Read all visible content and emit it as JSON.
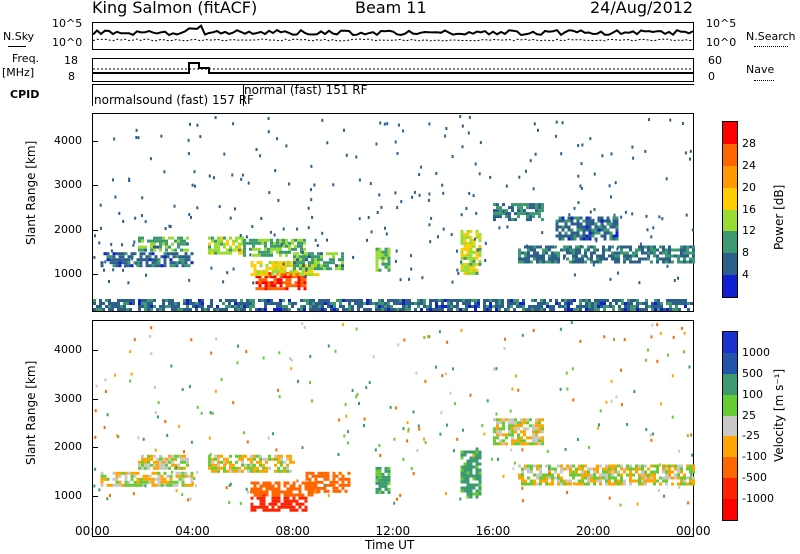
{
  "header": {
    "station": "King Salmon (fitACF)",
    "beam": "Beam 11",
    "date": "24/Aug/2012"
  },
  "status_panel": {
    "left_top_label": "N.Sky",
    "left_top_ticks": [
      "10^5",
      "10^0"
    ],
    "right_top_label": "N.Search",
    "right_top_ticks": [
      "10^5",
      "10^0"
    ],
    "left_mid_label_1": "Freq.",
    "left_mid_label_2": "[MHz]",
    "left_mid_ticks": [
      "18",
      "8"
    ],
    "right_mid_label": "Nave",
    "right_mid_ticks": [
      "60",
      "0"
    ],
    "cpid_label": "CPID",
    "cpid_mode_1": "normalsound (fast) 157 RF",
    "cpid_mode_2": "normal (fast) 151 RF"
  },
  "panels": {
    "ylabel": "Slant Range [km]",
    "y_ticks": [
      "4000",
      "3000",
      "2000",
      "1000"
    ],
    "x_ticks": [
      "00:00",
      "04:00",
      "08:00",
      "12:00",
      "16:00",
      "20:00",
      "00:00"
    ],
    "xlabel": "Time UT"
  },
  "colorbars": {
    "power": {
      "label": "Power [dB]",
      "ticks": [
        "28",
        "24",
        "20",
        "16",
        "12",
        "8",
        "4"
      ],
      "colors": [
        "#ff0000",
        "#ff6600",
        "#ff9900",
        "#ffcc00",
        "#99dd33",
        "#3d9970",
        "#2c5f8a",
        "#1020d0"
      ]
    },
    "velocity": {
      "label": "Velocity [m s⁻¹]",
      "ticks": [
        "1000",
        "500",
        "100",
        "25",
        "-25",
        "-100",
        "-500",
        "-1000"
      ],
      "colors": [
        "#1a33cc",
        "#2255aa",
        "#3d9970",
        "#66cc33",
        "#c8c8c8",
        "#ffa500",
        "#ff6600",
        "#ff2200",
        "#ff0000"
      ]
    }
  },
  "chart_data": [
    {
      "type": "heatmap",
      "title": "Power",
      "xlabel": "Time UT",
      "ylabel": "Slant Range [km]",
      "xlim_hours": [
        0,
        24
      ],
      "ylim_km": [
        180,
        4600
      ],
      "clim_db": [
        0,
        30
      ],
      "features": [
        {
          "t0": 0.0,
          "t1": 24.0,
          "r0": 200,
          "r1": 450,
          "val": 6
        },
        {
          "t0": 0.3,
          "t1": 4.0,
          "r0": 1200,
          "r1": 1500,
          "val": 6
        },
        {
          "t0": 1.8,
          "t1": 3.8,
          "r0": 1550,
          "r1": 1850,
          "val": 10
        },
        {
          "t0": 4.6,
          "t1": 6.0,
          "r0": 1500,
          "r1": 1850,
          "val": 13
        },
        {
          "t0": 6.0,
          "t1": 8.5,
          "r0": 1400,
          "r1": 1800,
          "val": 11
        },
        {
          "t0": 6.5,
          "t1": 8.5,
          "r0": 700,
          "r1": 1050,
          "val": 26
        },
        {
          "t0": 6.3,
          "t1": 9.0,
          "r0": 1000,
          "r1": 1300,
          "val": 15
        },
        {
          "t0": 8.0,
          "t1": 10.0,
          "r0": 1100,
          "r1": 1500,
          "val": 10
        },
        {
          "t0": 11.3,
          "t1": 11.9,
          "r0": 1100,
          "r1": 1600,
          "val": 11
        },
        {
          "t0": 14.7,
          "t1": 15.5,
          "r0": 1000,
          "r1": 2000,
          "val": 14
        },
        {
          "t0": 16.0,
          "t1": 18.0,
          "r0": 2200,
          "r1": 2600,
          "val": 8
        },
        {
          "t0": 17.0,
          "t1": 24.0,
          "r0": 1250,
          "r1": 1650,
          "val": 7
        },
        {
          "t0": 18.5,
          "t1": 21.0,
          "r0": 1800,
          "r1": 2300,
          "val": 6
        }
      ]
    },
    {
      "type": "heatmap",
      "title": "Velocity",
      "xlabel": "Time UT",
      "ylabel": "Slant Range [km]",
      "xlim_hours": [
        0,
        24
      ],
      "ylim_km": [
        180,
        4600
      ],
      "clim_ms": [
        -1000,
        1000
      ],
      "features": [
        {
          "t0": 0.3,
          "t1": 4.0,
          "r0": 1250,
          "r1": 1500,
          "val": 0
        },
        {
          "t0": 1.8,
          "t1": 3.8,
          "r0": 1550,
          "r1": 1850,
          "val": 0
        },
        {
          "t0": 4.6,
          "t1": 8.0,
          "r0": 1500,
          "r1": 1850,
          "val": 0
        },
        {
          "t0": 6.3,
          "t1": 8.5,
          "r0": 700,
          "r1": 1050,
          "val": -700
        },
        {
          "t0": 6.3,
          "t1": 9.0,
          "r0": 1050,
          "r1": 1300,
          "val": -300
        },
        {
          "t0": 8.5,
          "t1": 10.2,
          "r0": 1100,
          "r1": 1500,
          "val": -300
        },
        {
          "t0": 11.3,
          "t1": 11.9,
          "r0": 1100,
          "r1": 1600,
          "val": 150
        },
        {
          "t0": 14.7,
          "t1": 15.5,
          "r0": 1000,
          "r1": 2000,
          "val": 150
        },
        {
          "t0": 16.0,
          "t1": 18.0,
          "r0": 2100,
          "r1": 2600,
          "val": 0
        },
        {
          "t0": 17.0,
          "t1": 24.0,
          "r0": 1250,
          "r1": 1650,
          "val": 0
        }
      ]
    }
  ]
}
